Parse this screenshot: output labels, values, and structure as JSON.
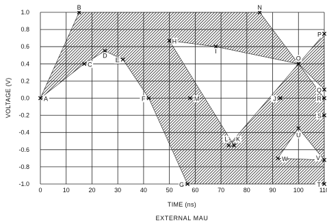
{
  "chart_data": {
    "type": "area",
    "title": "EXTERNAL MAU",
    "xlabel": "TIME (ns)",
    "ylabel": "VOLTAGE (V)",
    "xlim": [
      0,
      110
    ],
    "ylim": [
      -1.0,
      1.0
    ],
    "grid": true,
    "x_ticks": [
      "0",
      "10",
      "20",
      "30",
      "40",
      "50",
      "60",
      "70",
      "80",
      "90",
      "100",
      "110"
    ],
    "y_ticks": [
      "1.0",
      "0.8",
      "0.6",
      "0.4",
      "0.2",
      "0.0",
      "-0.2",
      "-0.4",
      "-0.6",
      "-0.8",
      "-1.0"
    ],
    "points": [
      {
        "label": "A",
        "x": 0,
        "y": 0.0
      },
      {
        "label": "B",
        "x": 15,
        "y": 1.0
      },
      {
        "label": "C",
        "x": 17,
        "y": 0.4
      },
      {
        "label": "D",
        "x": 25,
        "y": 0.55
      },
      {
        "label": "E",
        "x": 32,
        "y": 0.45
      },
      {
        "label": "F",
        "x": 42,
        "y": 0.0
      },
      {
        "label": "G",
        "x": 57,
        "y": -1.0
      },
      {
        "label": "H",
        "x": 50,
        "y": 0.67
      },
      {
        "label": "I",
        "x": 68,
        "y": 0.6
      },
      {
        "label": "M",
        "x": 58,
        "y": 0.0
      },
      {
        "label": "N",
        "x": 85,
        "y": 1.0
      },
      {
        "label": "J",
        "x": 93,
        "y": 0.0
      },
      {
        "label": "L",
        "x": 73,
        "y": -0.55
      },
      {
        "label": "K",
        "x": 75,
        "y": -0.55
      },
      {
        "label": "O",
        "x": 100,
        "y": 0.4
      },
      {
        "label": "P",
        "x": 110,
        "y": 0.75
      },
      {
        "label": "Q",
        "x": 110,
        "y": 0.1
      },
      {
        "label": "R",
        "x": 110,
        "y": 0.0
      },
      {
        "label": "S",
        "x": 110,
        "y": -0.2
      },
      {
        "label": "U",
        "x": 100,
        "y": -0.35
      },
      {
        "label": "W",
        "x": 92,
        "y": -0.7
      },
      {
        "label": "V",
        "x": 110,
        "y": -0.72
      },
      {
        "label": "T",
        "x": 110,
        "y": -1.0
      }
    ],
    "regions": [
      {
        "name": "outer-boundary",
        "vertices": [
          "A",
          "B",
          "N",
          "O",
          "P",
          "R",
          "S",
          "T",
          "G",
          "F",
          "E",
          "D",
          "C",
          "A"
        ]
      },
      {
        "name": "inner-hole",
        "vertices": [
          "H",
          "I",
          "O",
          "R",
          "Q",
          "O",
          "L",
          "K"
        ]
      },
      {
        "name": "lower-hole",
        "vertices": [
          "U",
          "V",
          "W"
        ]
      }
    ]
  },
  "colors": {
    "ink": "#111111",
    "background": "#ffffff"
  }
}
